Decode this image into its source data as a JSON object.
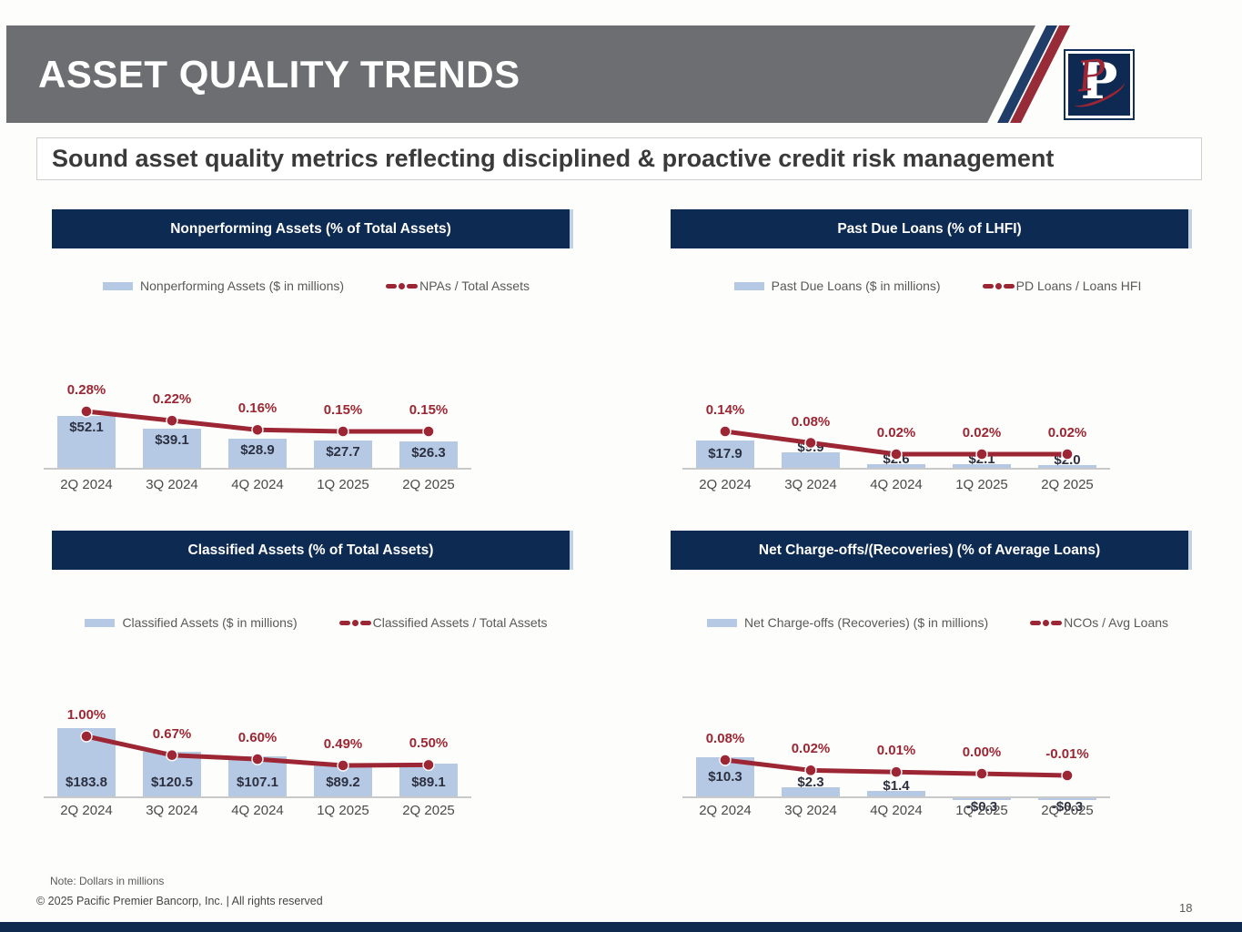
{
  "slide": {
    "title": "ASSET QUALITY TRENDS",
    "subtitle": "Sound asset quality metrics reflecting disciplined & proactive credit risk management",
    "note": "Note: Dollars in millions",
    "copyright": "© 2025 Pacific Premier Bancorp, Inc. | All rights reserved",
    "page_number": "18",
    "logo_letter": "P"
  },
  "colors": {
    "header_gray": "#6d6e71",
    "navy": "#0d2a52",
    "stripe_navy": "#1f3d68",
    "maroon": "#9c2633",
    "bar_fill": "#b6c9e4",
    "legend_text": "#595959",
    "axis_line": "#c9c9c9"
  },
  "chart_data": [
    {
      "type": "bar",
      "subtype": "combo-bar-line",
      "title": "Nonperforming Assets (% of Total Assets)",
      "legend_position": "top",
      "categories": [
        "2Q 2024",
        "3Q 2024",
        "4Q 2024",
        "1Q 2025",
        "2Q 2025"
      ],
      "series": [
        {
          "name": "Nonperforming Assets ($ in millions)",
          "type": "bar",
          "values": [
            52.1,
            39.1,
            28.9,
            27.7,
            26.3
          ],
          "labels": [
            "$52.1",
            "$39.1",
            "$28.9",
            "$27.7",
            "$26.3"
          ]
        },
        {
          "name": "NPAs / Total Assets",
          "type": "line",
          "values": [
            0.28,
            0.22,
            0.16,
            0.15,
            0.15
          ],
          "labels": [
            "0.28%",
            "0.22%",
            "0.16%",
            "0.15%",
            "0.15%"
          ]
        }
      ]
    },
    {
      "type": "bar",
      "subtype": "combo-bar-line",
      "title": "Past Due Loans (% of LHFI)",
      "legend_position": "top",
      "categories": [
        "2Q 2024",
        "3Q 2024",
        "4Q 2024",
        "1Q 2025",
        "2Q 2025"
      ],
      "series": [
        {
          "name": "Past Due Loans ($ in millions)",
          "type": "bar",
          "values": [
            17.9,
            9.9,
            2.6,
            2.1,
            2.0
          ],
          "labels": [
            "$17.9",
            "$9.9",
            "$2.6",
            "$2.1",
            "$2.0"
          ]
        },
        {
          "name": "PD Loans / Loans HFI",
          "type": "line",
          "values": [
            0.14,
            0.08,
            0.02,
            0.02,
            0.02
          ],
          "labels": [
            "0.14%",
            "0.08%",
            "0.02%",
            "0.02%",
            "0.02%"
          ]
        }
      ]
    },
    {
      "type": "bar",
      "subtype": "combo-bar-line",
      "title": "Classified Assets (% of Total Assets)",
      "legend_position": "top",
      "categories": [
        "2Q 2024",
        "3Q 2024",
        "4Q 2024",
        "1Q 2025",
        "2Q 2025"
      ],
      "series": [
        {
          "name": "Classified Assets ($ in millions)",
          "type": "bar",
          "values": [
            183.8,
            120.5,
            107.1,
            89.2,
            89.1
          ],
          "labels": [
            "$183.8",
            "$120.5",
            "$107.1",
            "$89.2",
            "$89.1"
          ]
        },
        {
          "name": "Classified Assets /  Total Assets",
          "type": "line",
          "values": [
            1.0,
            0.67,
            0.6,
            0.49,
            0.5
          ],
          "labels": [
            "1.00%",
            "0.67%",
            "0.60%",
            "0.49%",
            "0.50%"
          ]
        }
      ]
    },
    {
      "type": "bar",
      "subtype": "combo-bar-line",
      "title": "Net Charge-offs/(Recoveries) (% of Average Loans)",
      "legend_position": "top",
      "categories": [
        "2Q 2024",
        "3Q 2024",
        "4Q 2024",
        "1Q 2025",
        "2Q 2025"
      ],
      "series": [
        {
          "name": "Net Charge-offs (Recoveries) ($ in millions)",
          "type": "bar",
          "values": [
            10.3,
            2.3,
            1.4,
            -0.3,
            -0.3
          ],
          "labels": [
            "$10.3",
            "$2.3",
            "$1.4",
            "-$0.3",
            "-$0.3"
          ]
        },
        {
          "name": "NCOs / Avg Loans",
          "type": "line",
          "values": [
            0.08,
            0.02,
            0.01,
            0.0,
            -0.01
          ],
          "labels": [
            "0.08%",
            "0.02%",
            "0.01%",
            "0.00%",
            "-0.01%"
          ]
        }
      ]
    }
  ]
}
